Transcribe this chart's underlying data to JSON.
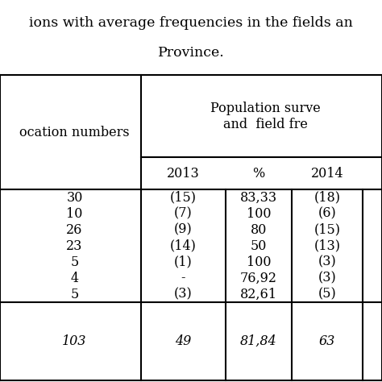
{
  "title_line1": "ions with average frequencies in the fields an",
  "title_line2": "Province.",
  "header_left": "ocation numbers",
  "header_group_line1": "Population surve",
  "header_group_line2": "and  field fre",
  "sub_headers": [
    "2013",
    "%",
    "2014"
  ],
  "col1": [
    "30",
    "10",
    "26",
    "23",
    "5",
    "4",
    "5"
  ],
  "col2": [
    "(15)",
    "(7)",
    "(9)",
    "(14)",
    "(1)",
    "-",
    "(3)"
  ],
  "col3": [
    "83,33",
    "100",
    "80",
    "50",
    "100",
    "76,92",
    "82,61"
  ],
  "col4": [
    "(18)",
    "(6)",
    "(15)",
    "(13)",
    "(3)",
    "(3)",
    "(5)"
  ],
  "total_col1": "103",
  "total_col2": "49",
  "total_col3": "81,84",
  "total_col4": "63",
  "bg_color": "#ffffff",
  "table_bg": "#ffffff",
  "text_color": "#000000",
  "font_size": 11.5
}
